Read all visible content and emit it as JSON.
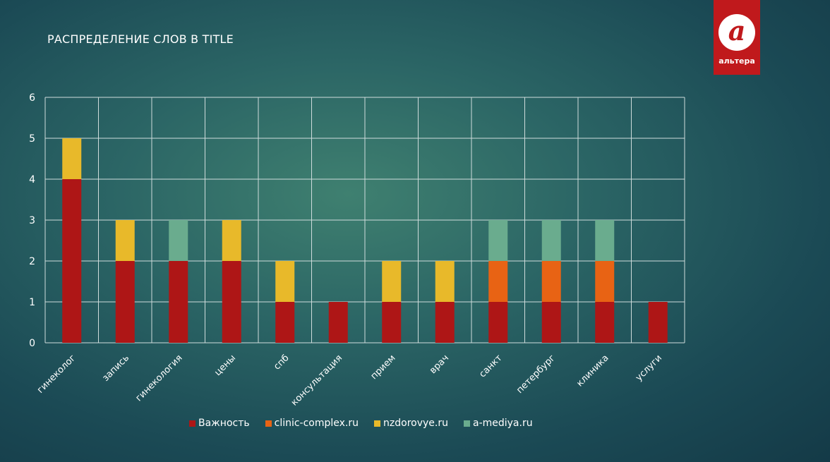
{
  "logo": {
    "text": "альтера"
  },
  "chart_data": {
    "type": "bar",
    "stacked": true,
    "title": "РАСПРЕДЕЛЕНИЕ СЛОВ В TITLE",
    "xlabel": "",
    "ylabel": "",
    "ylim": [
      0,
      6
    ],
    "yticks": [
      "0",
      "1",
      "2",
      "3",
      "4",
      "5",
      "6"
    ],
    "grid": true,
    "legend_position": "bottom",
    "categories": [
      "гинеколог",
      "запись",
      "гинекология",
      "цены",
      "спб",
      "консультация",
      "прием",
      "врач",
      "санкт",
      "петербург",
      "клиника",
      "услуги"
    ],
    "series": [
      {
        "name": "Важность",
        "color": "#ae1616",
        "values": [
          4,
          2,
          2,
          2,
          1,
          1,
          1,
          1,
          1,
          1,
          1,
          1
        ]
      },
      {
        "name": "clinic-complex.ru",
        "color": "#e86314",
        "values": [
          0,
          0,
          0,
          0,
          0,
          0,
          0,
          0,
          1,
          1,
          1,
          0
        ]
      },
      {
        "name": "nzdorovye.ru",
        "color": "#e8b92a",
        "values": [
          1,
          1,
          0,
          1,
          1,
          0,
          1,
          1,
          0,
          0,
          0,
          0
        ]
      },
      {
        "name": "a-mediya.ru",
        "color": "#6aac8e",
        "values": [
          0,
          0,
          1,
          0,
          0,
          0,
          0,
          0,
          1,
          1,
          1,
          0
        ]
      }
    ]
  }
}
